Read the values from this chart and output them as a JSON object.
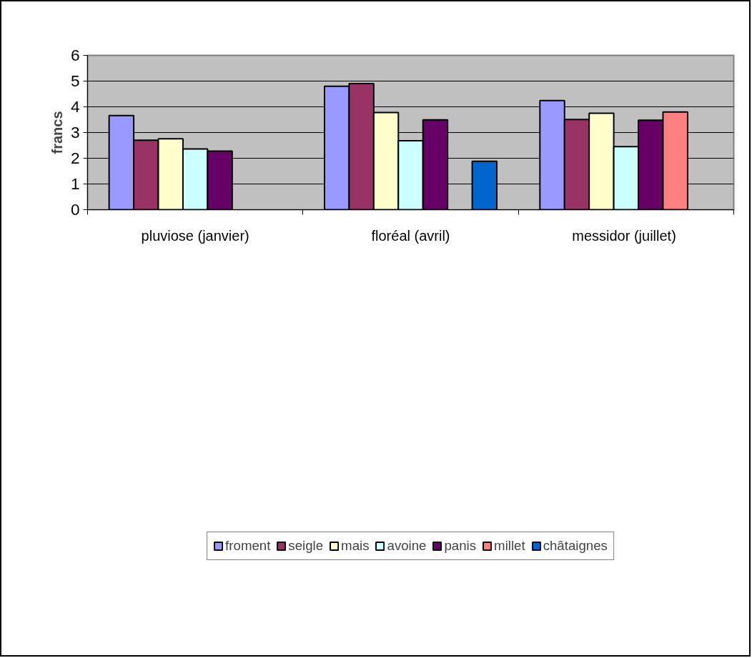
{
  "chart_data": {
    "type": "bar",
    "ylabel": "francs",
    "categories": [
      "pluviose (janvier)",
      "floréal (avril)",
      "messidor  (juillet)"
    ],
    "series": [
      {
        "name": "froment",
        "color": "#9999ff",
        "values": [
          3.66,
          4.8,
          4.24
        ]
      },
      {
        "name": "seigle",
        "color": "#993366",
        "values": [
          2.7,
          4.9,
          3.51
        ]
      },
      {
        "name": "mais",
        "color": "#ffffcc",
        "values": [
          2.76,
          3.78,
          3.75
        ]
      },
      {
        "name": "avoine",
        "color": "#ccffff",
        "values": [
          2.36,
          2.68,
          2.45
        ]
      },
      {
        "name": "panis",
        "color": "#660066",
        "values": [
          2.28,
          3.49,
          3.48
        ]
      },
      {
        "name": "millet",
        "color": "#ff8080",
        "values": [
          null,
          null,
          3.8
        ]
      },
      {
        "name": "châtaignes",
        "color": "#0066cc",
        "values": [
          null,
          1.88,
          null
        ]
      }
    ],
    "ylim": [
      0,
      6
    ],
    "yticks": [
      0,
      1,
      2,
      3,
      4,
      5,
      6
    ],
    "grid": "y",
    "legend": "bottom"
  }
}
